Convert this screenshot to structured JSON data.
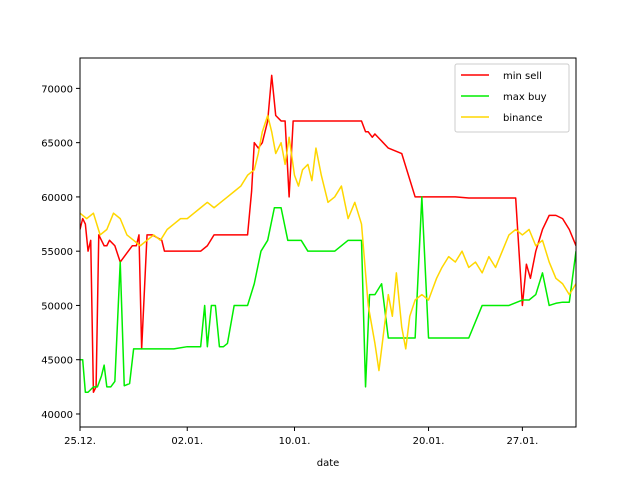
{
  "chart_data": {
    "type": "line",
    "title": "",
    "xlabel": "date",
    "ylabel": "",
    "xlim": [
      0,
      37
    ],
    "ylim": [
      38800,
      72800
    ],
    "grid": false,
    "legend_position": "upper right",
    "x_ticks": [
      {
        "value": 0,
        "label": "25.12."
      },
      {
        "value": 8,
        "label": "02.01."
      },
      {
        "value": 16,
        "label": "10.01."
      },
      {
        "value": 26,
        "label": "20.01."
      },
      {
        "value": 33,
        "label": "27.01."
      }
    ],
    "y_ticks": [
      40000,
      45000,
      50000,
      55000,
      60000,
      65000,
      70000
    ],
    "series": [
      {
        "name": "min sell",
        "color": "#ff0000",
        "x": [
          0,
          0.2,
          0.4,
          0.6,
          0.8,
          1.0,
          1.2,
          1.4,
          1.6,
          1.8,
          2.0,
          2.2,
          2.6,
          3.0,
          3.6,
          3.9,
          4.2,
          4.4,
          4.6,
          5.0,
          5.4,
          6.1,
          6.3,
          7.0,
          7.3,
          9.0,
          9.5,
          10.0,
          11.0,
          11.5,
          12.0,
          12.5,
          12.8,
          13.0,
          13.3,
          13.6,
          14.0,
          14.3,
          14.6,
          15.0,
          15.3,
          15.6,
          15.9,
          16.2,
          16.6,
          17.0,
          18.0,
          19.0,
          20.0,
          21.0,
          21.3,
          21.5,
          21.8,
          22.0,
          23.0,
          24.0,
          25.0,
          26.0,
          27.0,
          28.0,
          29.0,
          30.0,
          31.0,
          32.0,
          32.5,
          33.0,
          33.3,
          33.6,
          34.0,
          34.5,
          35.0,
          35.5,
          36.0,
          36.5,
          37.0
        ],
        "values": [
          57000,
          58000,
          57500,
          55000,
          56000,
          42000,
          42500,
          56500,
          56000,
          55500,
          55500,
          56000,
          55500,
          54000,
          55000,
          55500,
          55500,
          56500,
          46000,
          56500,
          56500,
          56000,
          55000,
          55000,
          55000,
          55000,
          55500,
          56500,
          56500,
          56500,
          56500,
          56500,
          60500,
          65000,
          64500,
          65000,
          67000,
          71200,
          67500,
          67000,
          67000,
          60000,
          67000,
          67000,
          67000,
          67000,
          67000,
          67000,
          67000,
          67000,
          66000,
          66000,
          65500,
          65800,
          64500,
          64000,
          60000,
          60000,
          60000,
          60000,
          59900,
          59900,
          59900,
          59900,
          59900,
          50000,
          53800,
          52500,
          55000,
          57000,
          58300,
          58300,
          58000,
          57000,
          55500
        ]
      },
      {
        "name": "max buy",
        "color": "#00ee00",
        "x": [
          0,
          0.2,
          0.4,
          0.6,
          1.0,
          1.3,
          1.6,
          1.8,
          2.0,
          2.3,
          2.6,
          3.0,
          3.3,
          3.7,
          4.0,
          5.0,
          6.0,
          7.0,
          8.0,
          9.0,
          9.3,
          9.5,
          9.8,
          10.1,
          10.4,
          10.7,
          11.0,
          11.5,
          12.0,
          12.5,
          13.0,
          13.5,
          14.0,
          14.5,
          15.0,
          15.5,
          16.0,
          16.5,
          17.0,
          18.0,
          19.0,
          20.0,
          20.5,
          21.0,
          21.3,
          21.6,
          22.0,
          22.5,
          23.0,
          24.0,
          25.0,
          25.5,
          26.0,
          27.0,
          28.0,
          29.0,
          30.0,
          31.0,
          32.0,
          33.0,
          33.5,
          34.0,
          34.5,
          35.0,
          35.5,
          36.0,
          36.5,
          37.0
        ],
        "values": [
          45000,
          45000,
          42000,
          42000,
          42500,
          42500,
          43500,
          44500,
          42500,
          42500,
          43000,
          54000,
          42600,
          42800,
          46000,
          46000,
          46000,
          46000,
          46200,
          46200,
          50000,
          46200,
          50000,
          50000,
          46200,
          46200,
          46500,
          50000,
          50000,
          50000,
          52000,
          55000,
          56000,
          59000,
          59000,
          56000,
          56000,
          56000,
          55000,
          55000,
          55000,
          56000,
          56000,
          56000,
          42500,
          51000,
          51000,
          52000,
          47000,
          47000,
          47000,
          60000,
          47000,
          47000,
          47000,
          47000,
          50000,
          50000,
          50000,
          50500,
          50500,
          51000,
          53000,
          50000,
          50200,
          50300,
          50300,
          55000
        ]
      },
      {
        "name": "binance",
        "color": "#ffd700",
        "x": [
          0,
          0.5,
          1.0,
          1.5,
          2.0,
          2.5,
          3.0,
          3.5,
          4.0,
          4.5,
          5.0,
          5.5,
          6.0,
          6.5,
          7.0,
          7.5,
          8.0,
          8.5,
          9.0,
          9.5,
          10.0,
          10.5,
          11.0,
          11.5,
          12.0,
          12.5,
          13.0,
          13.3,
          13.6,
          14.0,
          14.3,
          14.6,
          15.0,
          15.3,
          15.6,
          16.0,
          16.3,
          16.6,
          17.0,
          17.3,
          17.6,
          18.0,
          18.5,
          19.0,
          19.5,
          20.0,
          20.5,
          21.0,
          21.5,
          22.0,
          22.3,
          22.6,
          23.0,
          23.3,
          23.6,
          24.0,
          24.3,
          24.6,
          25.0,
          25.5,
          26.0,
          26.3,
          26.6,
          27.0,
          27.5,
          28.0,
          28.5,
          29.0,
          29.5,
          30.0,
          30.5,
          31.0,
          31.5,
          32.0,
          32.5,
          33.0,
          33.5,
          34.0,
          34.5,
          35.0,
          35.5,
          36.0,
          36.5,
          37.0
        ],
        "values": [
          58500,
          58000,
          58500,
          56500,
          57000,
          58500,
          58000,
          56500,
          56000,
          55500,
          56000,
          56500,
          56000,
          57000,
          57500,
          58000,
          58000,
          58500,
          59000,
          59500,
          59000,
          59500,
          60000,
          60500,
          61000,
          62000,
          62500,
          64000,
          66000,
          67500,
          66000,
          64000,
          65000,
          63000,
          65500,
          62000,
          61000,
          62500,
          63000,
          61500,
          64500,
          62000,
          59500,
          60000,
          61000,
          58000,
          59500,
          57500,
          50000,
          46500,
          44000,
          47000,
          51000,
          49000,
          53000,
          48000,
          46000,
          49000,
          50500,
          51000,
          50500,
          51500,
          52500,
          53500,
          54500,
          54000,
          55000,
          53500,
          54000,
          53000,
          54500,
          53500,
          55000,
          56500,
          57000,
          56500,
          57000,
          55500,
          56000,
          54000,
          52500,
          52000,
          51000,
          52000
        ]
      }
    ]
  }
}
